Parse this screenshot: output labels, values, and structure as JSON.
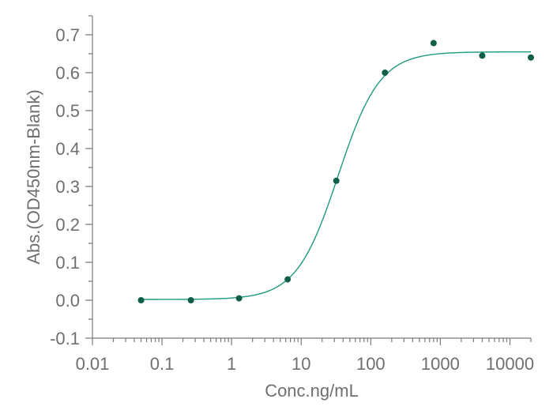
{
  "chart_data": {
    "type": "scatter",
    "xlabel": "Conc.ng/mL",
    "ylabel": "Abs.(OD450nm-Blank)",
    "x_scale": "log",
    "xlim": [
      0.01,
      20000
    ],
    "ylim": [
      -0.1,
      0.75
    ],
    "x_ticks": [
      0.01,
      0.1,
      1,
      10,
      100,
      1000,
      10000
    ],
    "x_tick_labels": [
      "0.01",
      "0.1",
      "1",
      "10",
      "100",
      "1000",
      "10000"
    ],
    "y_ticks": [
      -0.1,
      0.0,
      0.1,
      0.2,
      0.3,
      0.4,
      0.5,
      0.6,
      0.7
    ],
    "y_tick_labels": [
      "-0.1",
      "0.0",
      "0.1",
      "0.2",
      "0.3",
      "0.4",
      "0.5",
      "0.6",
      "0.7"
    ],
    "grid": false,
    "series": [
      {
        "type": "scatter",
        "color": "#0f5e48",
        "x": [
          0.05,
          0.26,
          1.28,
          6.4,
          32,
          160,
          800,
          4000,
          20000
        ],
        "y": [
          0.0,
          0.0,
          0.005,
          0.055,
          0.315,
          0.6,
          0.678,
          0.645,
          0.64
        ]
      },
      {
        "type": "fit-line",
        "color": "#1f9a80",
        "model": "4PL",
        "bottom": 0.002,
        "top": 0.655,
        "ec50": 34,
        "hill": 1.45,
        "x_range": [
          0.05,
          20000
        ]
      }
    ]
  }
}
